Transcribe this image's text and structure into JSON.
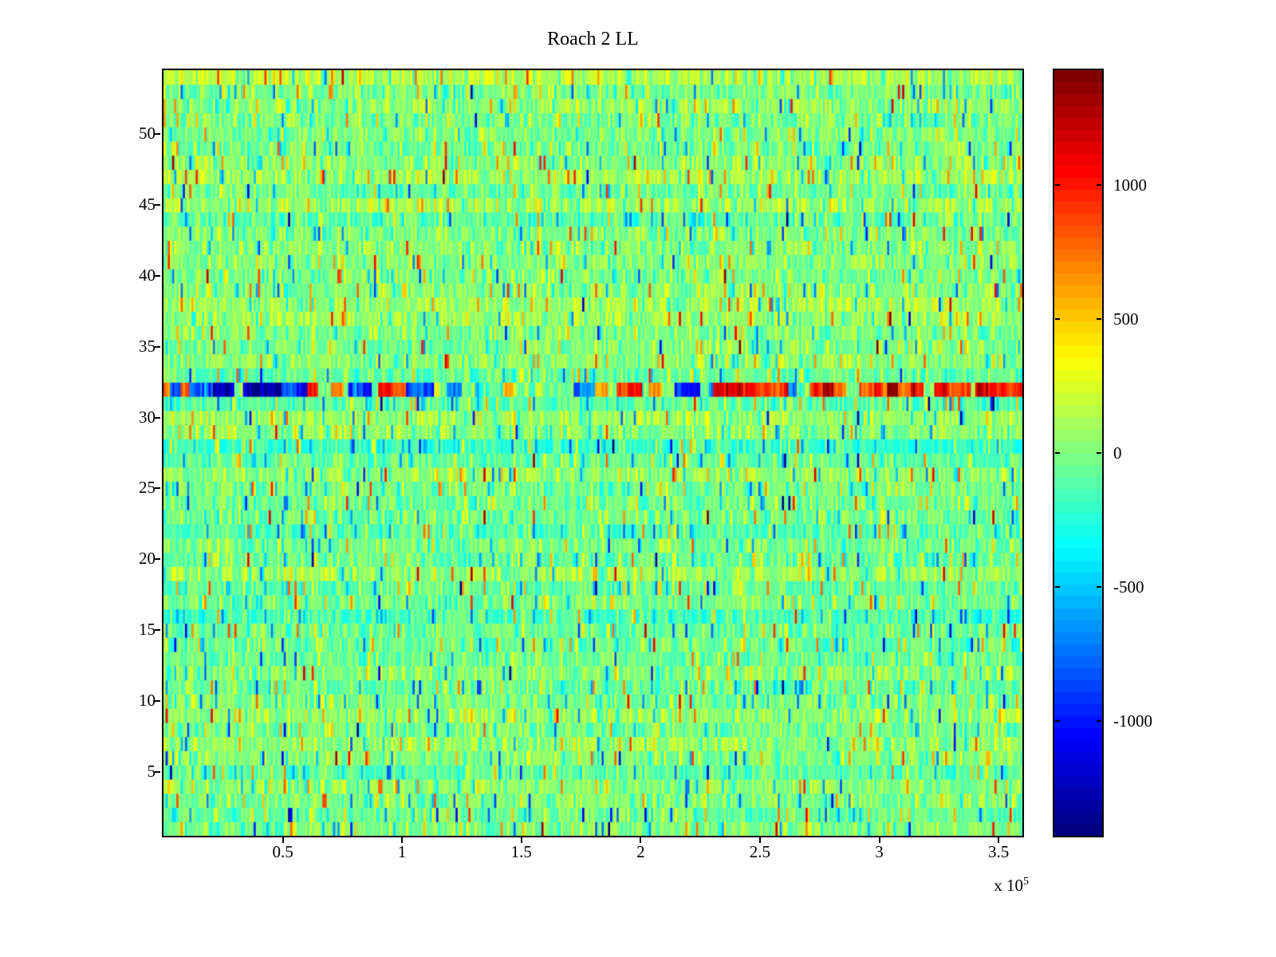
{
  "chart_data": {
    "type": "heatmap",
    "title": "Roach 2 LL",
    "colormap": "jet",
    "colormap_levels": 64,
    "x_axis": {
      "min": 0,
      "max": 360000,
      "multiplier_base": "x 10",
      "multiplier_exp": "5",
      "ticks": [
        {
          "label": "0.5",
          "value": 50000
        },
        {
          "label": "1",
          "value": 100000
        },
        {
          "label": "1.5",
          "value": 150000
        },
        {
          "label": "2",
          "value": 200000
        },
        {
          "label": "2.5",
          "value": 250000
        },
        {
          "label": "3",
          "value": 300000
        },
        {
          "label": "3.5",
          "value": 350000
        }
      ]
    },
    "y_axis": {
      "min": 0.5,
      "max": 54.5,
      "ticks": [
        {
          "label": "5",
          "value": 5
        },
        {
          "label": "10",
          "value": 10
        },
        {
          "label": "15",
          "value": 15
        },
        {
          "label": "20",
          "value": 20
        },
        {
          "label": "25",
          "value": 25
        },
        {
          "label": "30",
          "value": 30
        },
        {
          "label": "35",
          "value": 35
        },
        {
          "label": "40",
          "value": 40
        },
        {
          "label": "45",
          "value": 45
        },
        {
          "label": "50",
          "value": 50
        }
      ]
    },
    "colorbar": {
      "min": -1430,
      "max": 1430,
      "ticks": [
        {
          "label": "1000",
          "value": 1000
        },
        {
          "label": "500",
          "value": 500
        },
        {
          "label": "0",
          "value": 0
        },
        {
          "label": "-500",
          "value": -500
        },
        {
          "label": "-1000",
          "value": -1000
        }
      ]
    },
    "grid": {
      "rows": 54,
      "cols": 400
    },
    "noise": {
      "seed": 7,
      "sigma": 125,
      "row_offset_sigma": 55,
      "spike_prob": 0.12,
      "spike_base": 220,
      "spike_scale": 380
    },
    "special_rows": [
      {
        "row": 28,
        "offset": -190
      },
      {
        "row": 44,
        "offset": -90
      },
      {
        "row": 9,
        "offset": 60
      }
    ],
    "anomaly_row": {
      "row": 32,
      "base_sigma": 150,
      "segments": [
        {
          "from": 0.0,
          "to": 0.05,
          "active": 0.55,
          "pos": 0.25,
          "mag": 800
        },
        {
          "from": 0.05,
          "to": 0.18,
          "active": 0.85,
          "pos": 0.05,
          "mag": 1300
        },
        {
          "from": 0.18,
          "to": 0.25,
          "active": 0.6,
          "pos": 0.35,
          "mag": 950
        },
        {
          "from": 0.25,
          "to": 0.3,
          "active": 0.65,
          "pos": 0.7,
          "mag": 950
        },
        {
          "from": 0.3,
          "to": 0.37,
          "active": 0.6,
          "pos": 0.25,
          "mag": 900
        },
        {
          "from": 0.37,
          "to": 0.44,
          "active": 0.6,
          "pos": 0.7,
          "mag": 900
        },
        {
          "from": 0.44,
          "to": 0.5,
          "active": 0.6,
          "pos": 0.3,
          "mag": 850
        },
        {
          "from": 0.5,
          "to": 0.57,
          "active": 0.6,
          "pos": 0.75,
          "mag": 900
        },
        {
          "from": 0.57,
          "to": 0.64,
          "active": 0.65,
          "pos": 0.35,
          "mag": 950
        },
        {
          "from": 0.64,
          "to": 0.8,
          "active": 0.8,
          "pos": 0.9,
          "mag": 1150
        },
        {
          "from": 0.8,
          "to": 0.95,
          "active": 0.85,
          "pos": 0.95,
          "mag": 1380
        },
        {
          "from": 0.95,
          "to": 1.01,
          "active": 0.7,
          "pos": 0.85,
          "mag": 1000
        }
      ]
    }
  }
}
